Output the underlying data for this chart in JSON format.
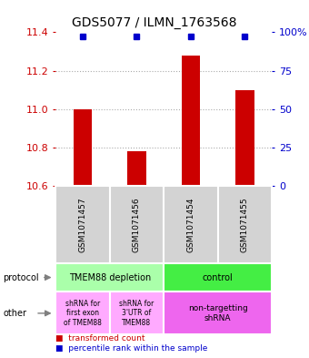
{
  "title": "GDS5077 / ILMN_1763568",
  "samples": [
    "GSM1071457",
    "GSM1071456",
    "GSM1071454",
    "GSM1071455"
  ],
  "transformed_counts": [
    11.0,
    10.78,
    11.28,
    11.1
  ],
  "percentile_ranks": [
    97,
    97,
    97,
    97
  ],
  "ylim": [
    10.6,
    11.4
  ],
  "yticks_left": [
    10.6,
    10.8,
    11.0,
    11.2,
    11.4
  ],
  "yticks_right": [
    0,
    25,
    50,
    75,
    100
  ],
  "bar_color": "#cc0000",
  "dot_color": "#0000cc",
  "protocol_labels": [
    "TMEM88 depletion",
    "control"
  ],
  "protocol_colors": [
    "#aaffaa",
    "#44ee44"
  ],
  "other_labels": [
    "shRNA for\nfirst exon\nof TMEM88",
    "shRNA for\n3'UTR of\nTMEM88",
    "non-targetting\nshRNA"
  ],
  "other_colors": [
    "#ffaaff",
    "#ffaaff",
    "#ee66ee"
  ],
  "grid_color": "#aaaaaa",
  "label_color_left": "#cc0000",
  "label_color_right": "#0000cc",
  "legend_red_label": "transformed count",
  "legend_blue_label": "percentile rank within the sample"
}
